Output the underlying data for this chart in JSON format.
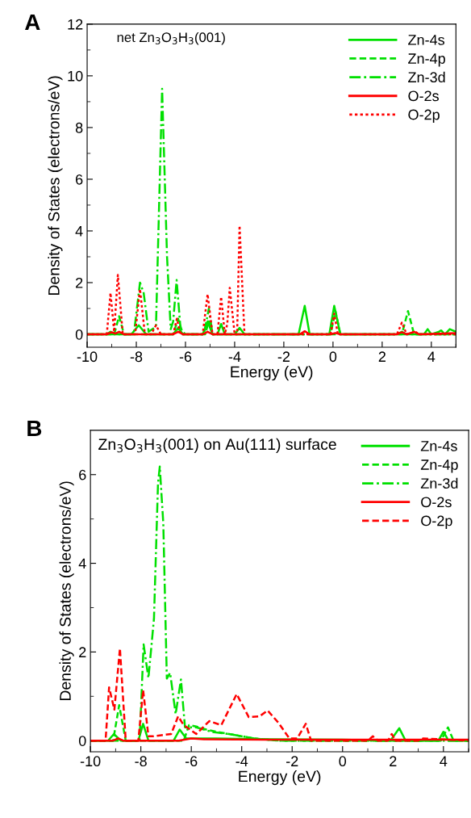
{
  "chart_data": [
    {
      "type": "line",
      "title": "net Zn$_{3}$O$_{3}$H$_{3}$(001)",
      "xlabel": "Energy (eV)",
      "ylabel": "Density of States (electrons/eV)",
      "annotations": [
        "A"
      ],
      "xlim": [
        -10,
        5
      ],
      "ylim": [
        -0.5,
        12
      ],
      "xticks": [
        -10,
        {
          "value": -9,
          "label": null
        },
        -8,
        {
          "value": -7,
          "label": null
        },
        -6,
        {
          "value": -5,
          "label": null
        },
        -4,
        {
          "value": -3,
          "label": null
        },
        -2,
        {
          "value": -1,
          "label": null
        },
        0,
        {
          "value": 1,
          "label": null
        },
        2,
        {
          "value": 3,
          "label": null
        },
        4,
        {
          "value": 5,
          "label": null
        }
      ],
      "yticks": [
        0,
        {
          "value": 1,
          "label": null
        },
        2,
        {
          "value": 3,
          "label": null
        },
        4,
        {
          "value": 5,
          "label": null
        },
        6,
        {
          "value": 7,
          "label": null
        },
        8,
        {
          "value": 9,
          "label": null
        },
        10,
        {
          "value": 11,
          "label": null
        },
        12
      ],
      "legend": "top right",
      "grid": false,
      "series": [
        {
          "name": "Zn-4s",
          "color": "#00e000",
          "line_style": "solid",
          "x": [
            -10,
            -9.2,
            -9.05,
            -8.9,
            -8.2,
            -7.9,
            -7.6,
            -7.4,
            -6.5,
            -6.3,
            -6.1,
            -5.3,
            -5.1,
            -4.9,
            -4.7,
            -4.55,
            -4.4,
            -4.0,
            -3.8,
            -3.6,
            -1.4,
            -1.15,
            -0.95,
            -0.15,
            0.05,
            0.3,
            2.6,
            2.8,
            3.0,
            3.7,
            3.85,
            4.0,
            4.3,
            4.4,
            4.55,
            4.75,
            5
          ],
          "values": [
            0,
            0,
            0.1,
            0,
            0,
            0.35,
            0,
            0,
            0,
            0.25,
            0,
            0,
            0.5,
            0,
            0,
            0.4,
            0,
            0,
            0.25,
            0,
            0,
            1.1,
            0,
            0,
            1.1,
            0,
            0,
            0.1,
            0,
            0,
            0.2,
            0,
            0.1,
            0.15,
            0,
            0.2,
            0.1
          ]
        },
        {
          "name": "Zn-4p",
          "color": "#00e000",
          "line_style": "dashed",
          "x": [
            -10,
            -8.9,
            -8.7,
            -8.5,
            -6.5,
            -6.3,
            -6.1,
            -5.2,
            -5.05,
            -4.9,
            -0.1,
            0.1,
            0.3,
            2.8,
            3.05,
            3.3,
            5
          ],
          "values": [
            0,
            0,
            0.7,
            0,
            0,
            0.6,
            0,
            0,
            0.5,
            0,
            0,
            0.9,
            0,
            0,
            0.9,
            0,
            0
          ]
        },
        {
          "name": "Zn-3d",
          "color": "#00e000",
          "line_style": "dashdot",
          "x": [
            -10,
            -8.1,
            -7.85,
            -7.7,
            -7.5,
            -7.2,
            -6.95,
            -6.75,
            -6.6,
            -6.5,
            -6.36,
            -6.2,
            -6.0,
            -5.25,
            -5.05,
            -4.9,
            5
          ],
          "values": [
            0,
            0,
            2.0,
            1.6,
            0.1,
            0.3,
            9.5,
            3.0,
            0.2,
            0.5,
            2.1,
            0.2,
            0,
            0,
            1.0,
            0,
            0
          ]
        },
        {
          "name": "O-2s",
          "color": "#ff0000",
          "line_style": "solid",
          "x": [
            -10,
            -9.2,
            -9.0,
            -8.85,
            -8.7,
            -8.5,
            -6.5,
            -6.3,
            -6.1,
            -5.3,
            -5.1,
            -4.9,
            -1.35,
            -1.15,
            -0.95,
            -0.1,
            0.1,
            0.3,
            2.6,
            2.8,
            3.0,
            3.3,
            3.5,
            5
          ],
          "values": [
            0,
            0,
            0.08,
            0.03,
            0.1,
            0,
            0,
            0.1,
            0,
            0,
            0.1,
            0,
            0,
            0.12,
            0,
            0,
            0.05,
            0,
            0,
            0.08,
            0,
            0.1,
            0,
            0.05
          ]
        },
        {
          "name": "O-2p",
          "color": "#ff0000",
          "line_style": "dotted",
          "x": [
            -10,
            -9.2,
            -9.05,
            -8.9,
            -8.75,
            -8.55,
            -8.05,
            -7.85,
            -7.65,
            -7.4,
            -7.2,
            -7.0,
            -6.5,
            -6.35,
            -6.2,
            -5.3,
            -5.1,
            -4.9,
            -4.7,
            -4.55,
            -4.4,
            -4.3,
            -4.2,
            -4.0,
            -3.9,
            -3.8,
            -3.6,
            -0.1,
            0.05,
            0.2,
            2.6,
            2.8,
            3.0,
            3.35,
            3.5,
            5
          ],
          "values": [
            0,
            0,
            1.6,
            0.1,
            2.3,
            0,
            0,
            1.75,
            0,
            0,
            0.35,
            0,
            0,
            0.6,
            0,
            0,
            1.55,
            0,
            0,
            1.45,
            0,
            0.4,
            1.8,
            0,
            0,
            4.2,
            0,
            0,
            0.8,
            0,
            0,
            0.45,
            0,
            0.1,
            0,
            0
          ]
        }
      ]
    },
    {
      "type": "line",
      "title": "Zn$_{3}$O$_{3}$H$_{3}$(001) on Au(111) surface",
      "xlabel": "Energy (eV)",
      "ylabel": "Density of States (electrons/eV)",
      "annotations": [
        "B"
      ],
      "xlim": [
        -10,
        5
      ],
      "ylim": [
        -0.25,
        7
      ],
      "xticks": [
        -10,
        {
          "value": -9,
          "label": null
        },
        -8,
        {
          "value": -7,
          "label": null
        },
        -6,
        {
          "value": -5,
          "label": null
        },
        -4,
        {
          "value": -3,
          "label": null
        },
        -2,
        {
          "value": -1,
          "label": null
        },
        0,
        {
          "value": 1,
          "label": null
        },
        2,
        {
          "value": 3,
          "label": null
        },
        4,
        {
          "value": 5,
          "label": null
        }
      ],
      "yticks": [
        0,
        {
          "value": 1,
          "label": null
        },
        2,
        {
          "value": 3,
          "label": null
        },
        4,
        {
          "value": 5,
          "label": null
        },
        6
      ],
      "legend": "top right",
      "grid": false,
      "series": [
        {
          "name": "Zn-4s",
          "color": "#00e000",
          "line_style": "solid",
          "x": [
            -10,
            -9.3,
            -9.07,
            -8.8,
            -8.1,
            -7.91,
            -7.7,
            -6.7,
            -6.46,
            -6.2,
            -5.0,
            -3.0,
            0,
            1.9,
            2.25,
            2.5,
            3.8,
            4.0,
            4.2,
            5
          ],
          "values": [
            0,
            0,
            0.15,
            0,
            0,
            0.38,
            0,
            0,
            0.25,
            0.05,
            0.05,
            0.03,
            0.02,
            0,
            0.28,
            0,
            0,
            0.2,
            0,
            0
          ]
        },
        {
          "name": "Zn-4p",
          "color": "#00e000",
          "line_style": "dashed",
          "x": [
            -10,
            -9.1,
            -8.86,
            -8.6,
            -6.3,
            -6.09,
            -5.8,
            -5.4,
            -5.0,
            -4.5,
            -3.5,
            -2.5,
            3.9,
            4.18,
            4.4,
            5
          ],
          "values": [
            0,
            0,
            0.8,
            0,
            0,
            0.35,
            0.32,
            0.25,
            0.2,
            0.15,
            0.05,
            0,
            0,
            0.3,
            0,
            0
          ]
        },
        {
          "name": "Zn-3d",
          "color": "#00e000",
          "line_style": "dashdot",
          "x": [
            -10,
            -8.05,
            -7.89,
            -7.7,
            -7.48,
            -7.32,
            -7.25,
            -7.11,
            -6.97,
            -6.84,
            -6.62,
            -6.41,
            -6.25,
            -5.8,
            -5.2,
            -4.5,
            -3.5,
            -2.5,
            5
          ],
          "values": [
            0,
            0,
            2.17,
            1.41,
            2.75,
            5.8,
            6.18,
            4.9,
            1.4,
            1.53,
            0.6,
            1.38,
            0.3,
            0.3,
            0.2,
            0.15,
            0.05,
            0,
            0
          ]
        },
        {
          "name": "O-2s",
          "color": "#ff0000",
          "line_style": "solid",
          "x": [
            -10,
            -9.1,
            -8.9,
            -8.7,
            -6.5,
            -6.0,
            -5.5,
            -3,
            0,
            5
          ],
          "values": [
            0,
            0,
            0.05,
            0,
            0,
            0.05,
            0.03,
            0.02,
            0.02,
            0.02
          ]
        },
        {
          "name": "O-2p",
          "color": "#ff0000",
          "line_style": "dashed",
          "x": [
            -10,
            -9.4,
            -9.26,
            -9.05,
            -8.83,
            -8.6,
            -8.1,
            -7.91,
            -7.7,
            -7.5,
            -6.8,
            -6.52,
            -6.3,
            -5.8,
            -5.29,
            -4.81,
            -4.2,
            -3.72,
            -3.29,
            -2.97,
            -2.54,
            -2.11,
            -1.8,
            -1.46,
            -1.25,
            1.0,
            1.2,
            1.4,
            1.8,
            1.95,
            2.1,
            3.0,
            3.2,
            5
          ],
          "values": [
            0,
            0,
            1.2,
            0.7,
            2.08,
            0,
            0,
            1.14,
            0.1,
            0.1,
            0.15,
            0.55,
            0.35,
            0.15,
            0.44,
            0.35,
            1.05,
            0.53,
            0.55,
            0.68,
            0.4,
            0.05,
            0.05,
            0.38,
            0,
            0,
            0.1,
            0,
            0,
            0.15,
            0,
            0,
            0.05,
            0
          ]
        }
      ]
    }
  ]
}
